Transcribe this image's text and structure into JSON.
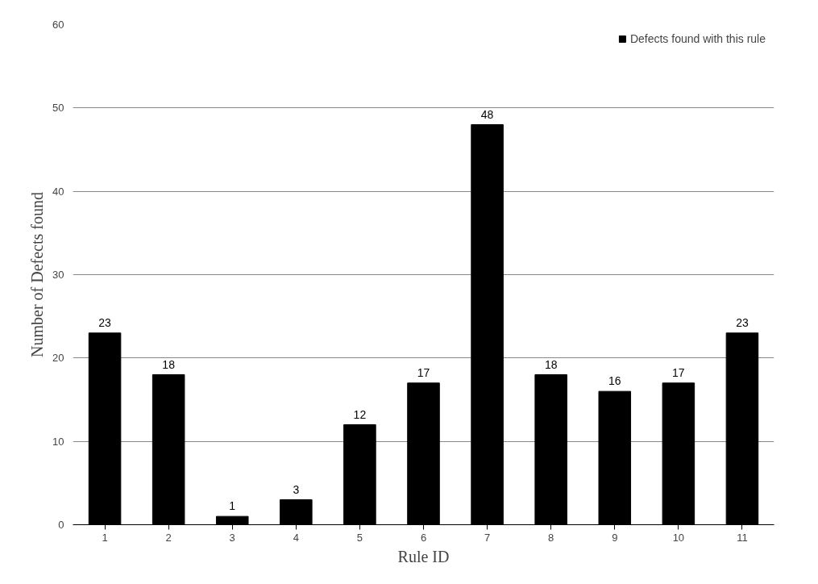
{
  "chart_data": {
    "type": "bar",
    "xlabel": "Rule ID",
    "ylabel": "Number of Defects found",
    "categories": [
      "1",
      "2",
      "3",
      "4",
      "5",
      "6",
      "7",
      "8",
      "9",
      "10",
      "11"
    ],
    "series": [
      {
        "name": "Defects found with this rule",
        "color": "#000000",
        "values": [
          23,
          18,
          1,
          3,
          12,
          17,
          48,
          18,
          16,
          17,
          23
        ]
      }
    ],
    "ylim": [
      0,
      60
    ],
    "yticks": [
      0,
      10,
      20,
      30,
      40,
      50,
      60
    ],
    "grid": "y",
    "legend": "top right",
    "data_labels": true
  }
}
